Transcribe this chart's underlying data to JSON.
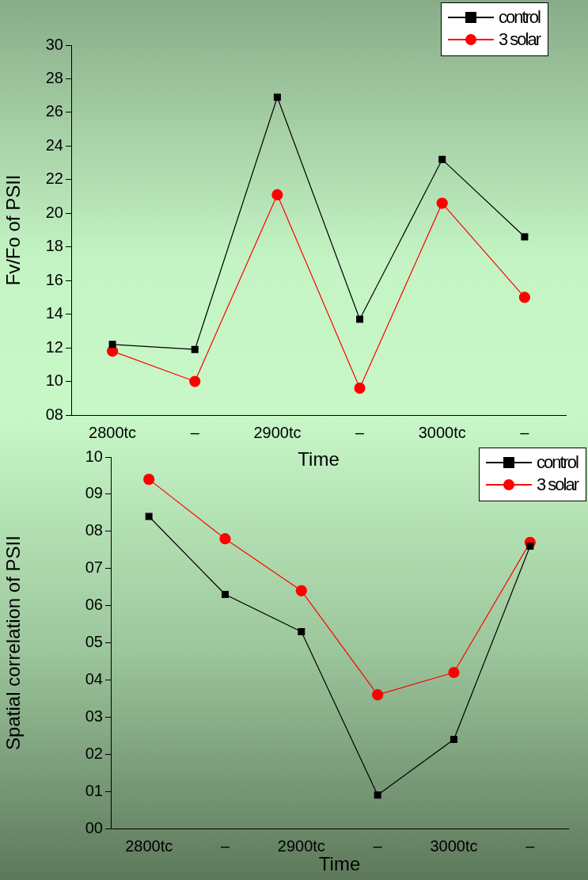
{
  "chart_data": [
    {
      "type": "line",
      "xlabel": "Time",
      "ylabel": "Fv/Fo of PSII",
      "categories": [
        "2800tc",
        "–",
        "2900tc",
        "–",
        "3000tc",
        "–"
      ],
      "ylim": [
        8,
        30
      ],
      "yticks": [
        {
          "value": 8,
          "label": "08"
        },
        10,
        12,
        14,
        16,
        18,
        20,
        22,
        24,
        26,
        28,
        30
      ],
      "legend": "top right",
      "series": [
        {
          "name": "control",
          "color": "#000000",
          "marker": "square",
          "values": [
            12.2,
            11.9,
            26.9,
            13.7,
            23.2,
            18.6
          ]
        },
        {
          "name": "3 solar",
          "color": "#ff0000",
          "marker": "circle",
          "values": [
            11.8,
            10.0,
            21.1,
            9.6,
            20.6,
            15.0
          ]
        }
      ]
    },
    {
      "type": "line",
      "xlabel": "Time",
      "ylabel": "Spatial correlation of PSII",
      "categories": [
        "2800tc",
        "–",
        "2900tc",
        "–",
        "3000tc",
        "–"
      ],
      "ylim": [
        0,
        10
      ],
      "yticks": [
        {
          "value": 0,
          "label": "00"
        },
        {
          "value": 1,
          "label": "01"
        },
        {
          "value": 2,
          "label": "02"
        },
        {
          "value": 3,
          "label": "03"
        },
        {
          "value": 4,
          "label": "04"
        },
        {
          "value": 5,
          "label": "05"
        },
        {
          "value": 6,
          "label": "06"
        },
        {
          "value": 7,
          "label": "07"
        },
        {
          "value": 8,
          "label": "08"
        },
        {
          "value": 9,
          "label": "09"
        },
        10
      ],
      "legend": "top right",
      "series": [
        {
          "name": "control",
          "color": "#000000",
          "marker": "square",
          "values": [
            8.4,
            6.3,
            5.3,
            0.9,
            2.4,
            7.6
          ]
        },
        {
          "name": "3 solar",
          "color": "#ff0000",
          "marker": "circle",
          "values": [
            9.4,
            7.8,
            6.4,
            3.6,
            4.2,
            7.7
          ]
        }
      ]
    }
  ]
}
